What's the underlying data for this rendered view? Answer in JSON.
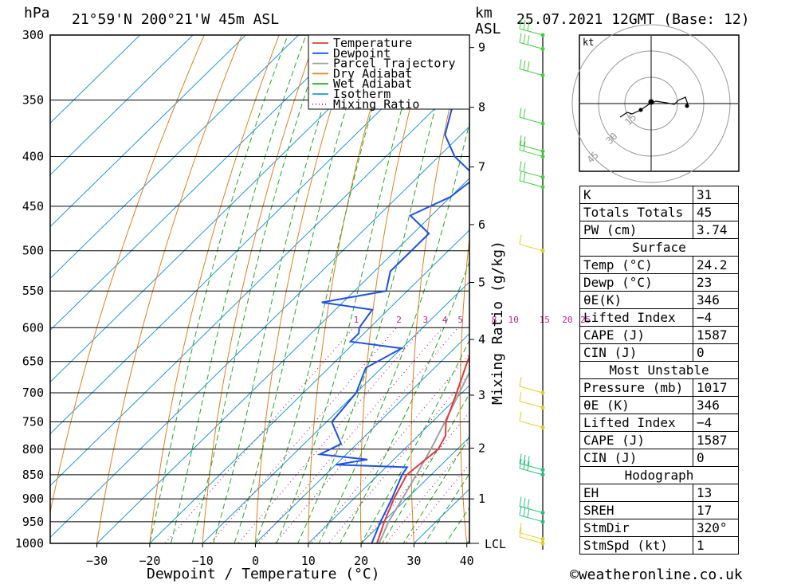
{
  "header": {
    "p_unit": "hPa",
    "location": "21°59'N  200°21'W  45m  ASL",
    "km_unit": "km",
    "asl_label": "ASL",
    "datetime": "25.07.2021  12GMT  (Base: 12)"
  },
  "chart_data": {
    "type": "skew-t",
    "xlabel": "Dewpoint / Temperature (°C)",
    "secondary_label": "Mixing Ratio (g/kg)",
    "x_ticks": [
      -30,
      -20,
      -10,
      0,
      10,
      20,
      30,
      40
    ],
    "x_tick_labels": [
      "−30",
      "−20",
      "−10",
      "0",
      "10",
      "20",
      "30",
      "40"
    ],
    "xlim": [
      -38,
      40
    ],
    "pressure_levels": [
      300,
      350,
      400,
      450,
      500,
      550,
      600,
      650,
      700,
      750,
      800,
      850,
      900,
      950,
      1000
    ],
    "plim": [
      300,
      1000
    ],
    "km_ticks": [
      "1",
      "2",
      "3",
      "4",
      "5",
      "6",
      "7",
      "8",
      "9"
    ],
    "km_tick_pressures": [
      900,
      798,
      704,
      617,
      539,
      470,
      410,
      356,
      309
    ],
    "lcl_label": "LCL",
    "lcl_pressure": 1000,
    "mixing_ratio_labels": [
      "1",
      "2",
      "3",
      "4",
      "5",
      "8",
      "10",
      "15",
      "20",
      "25"
    ],
    "mixing_ratio_label_pressure": 595,
    "legend": [
      "Temperature",
      "Dewpoint",
      "Parcel Trajectory",
      "Dry Adiabat",
      "Wet Adiabat",
      "Isotherm",
      "Mixing Ratio"
    ],
    "colors": {
      "temperature": "#e03c3c",
      "dewpoint": "#1e50e6",
      "parcel": "#a0a0a0",
      "dry_adiabat": "#e08020",
      "wet_adiabat": "#22aa22",
      "isotherm": "#1e96dc",
      "mixing_ratio": "#c0208a",
      "wind": "#28c080"
    },
    "temperature": [
      [
        1017,
        24.2
      ],
      [
        1000,
        23.0
      ],
      [
        950,
        20.2
      ],
      [
        900,
        17.6
      ],
      [
        850,
        15.4
      ],
      [
        800,
        16.4
      ],
      [
        775,
        15.2
      ],
      [
        750,
        12.6
      ],
      [
        700,
        9.0
      ],
      [
        650,
        5.0
      ],
      [
        625,
        3.0
      ],
      [
        615,
        4.0
      ],
      [
        600,
        4.0
      ],
      [
        575,
        1.0
      ],
      [
        550,
        -1.5
      ],
      [
        500,
        -6.8
      ],
      [
        450,
        -12.5
      ],
      [
        400,
        -19.8
      ],
      [
        350,
        -28.5
      ],
      [
        300,
        -39.0
      ]
    ],
    "dewpoint": [
      [
        1017,
        23.0
      ],
      [
        1000,
        22.0
      ],
      [
        950,
        19.5
      ],
      [
        900,
        17.2
      ],
      [
        850,
        14.5
      ],
      [
        835,
        14.0
      ],
      [
        830,
        0.0
      ],
      [
        820,
        5.0
      ],
      [
        810,
        -5.0
      ],
      [
        790,
        -3.0
      ],
      [
        750,
        -9.0
      ],
      [
        700,
        -10.0
      ],
      [
        660,
        -13.0
      ],
      [
        630,
        -10.0
      ],
      [
        620,
        -21.0
      ],
      [
        608,
        -21.0
      ],
      [
        600,
        -22.0
      ],
      [
        575,
        -23.0
      ],
      [
        565,
        -34.0
      ],
      [
        550,
        -24.0
      ],
      [
        525,
        -27.0
      ],
      [
        480,
        -27.0
      ],
      [
        460,
        -34.0
      ],
      [
        440,
        -30.0
      ],
      [
        420,
        -29.0
      ],
      [
        400,
        -37.0
      ],
      [
        380,
        -43.0
      ],
      [
        350,
        -48.0
      ],
      [
        325,
        -45.0
      ],
      [
        300,
        -60.0
      ]
    ],
    "parcel": [
      [
        1017,
        24.2
      ],
      [
        950,
        21.0
      ],
      [
        900,
        19.2
      ],
      [
        850,
        17.2
      ],
      [
        800,
        15.0
      ],
      [
        750,
        12.4
      ],
      [
        700,
        9.5
      ],
      [
        650,
        6.4
      ],
      [
        600,
        2.9
      ],
      [
        550,
        -0.8
      ],
      [
        500,
        -5.0
      ],
      [
        450,
        -9.8
      ],
      [
        400,
        -15.5
      ],
      [
        370,
        -19.5
      ]
    ],
    "wind_barbs": [
      [
        1000,
        5
      ],
      [
        990,
        5
      ],
      [
        950,
        15
      ],
      [
        930,
        15
      ],
      [
        850,
        15
      ],
      [
        840,
        15
      ],
      [
        760,
        5
      ],
      [
        725,
        5
      ],
      [
        700,
        5
      ],
      [
        500,
        5
      ],
      [
        430,
        10
      ],
      [
        420,
        10
      ],
      [
        400,
        10
      ],
      [
        395,
        10
      ],
      [
        370,
        10
      ],
      [
        330,
        15
      ],
      [
        310,
        15
      ],
      [
        300,
        15
      ]
    ]
  },
  "hodograph": {
    "unit_label": "kt",
    "ring_labels": [
      "15",
      "30",
      "45"
    ]
  },
  "stats": {
    "k_label": "K",
    "k": "31",
    "tt_label": "Totals Totals",
    "tt": "45",
    "pw_label": "PW (cm)",
    "pw": "3.74",
    "surface_title": "Surface",
    "temp_label": "Temp (°C)",
    "temp": "24.2",
    "dewp_label": "Dewp (°C)",
    "dewp": "23",
    "thetae_label": "θE(K)",
    "thetae": "346",
    "li_label": "Lifted Index",
    "li": "−4",
    "cape_label": "CAPE (J)",
    "cape": "1587",
    "cin_label": "CIN (J)",
    "cin": "0",
    "mu_title": "Most Unstable",
    "mu_pressure_label": "Pressure (mb)",
    "mu_pressure": "1017",
    "mu_thetae_label": "θE (K)",
    "mu_thetae": "346",
    "mu_li_label": "Lifted Index",
    "mu_li": "−4",
    "mu_cape_label": "CAPE (J)",
    "mu_cape": "1587",
    "mu_cin_label": "CIN (J)",
    "mu_cin": "0",
    "hodo_title": "Hodograph",
    "eh_label": "EH",
    "eh": "13",
    "sreh_label": "SREH",
    "sreh": "17",
    "stmdir_label": "StmDir",
    "stmdir": "320°",
    "stmspd_label": "StmSpd (kt)",
    "stmspd": "1"
  },
  "copyright": "©weatheronline.co.uk"
}
